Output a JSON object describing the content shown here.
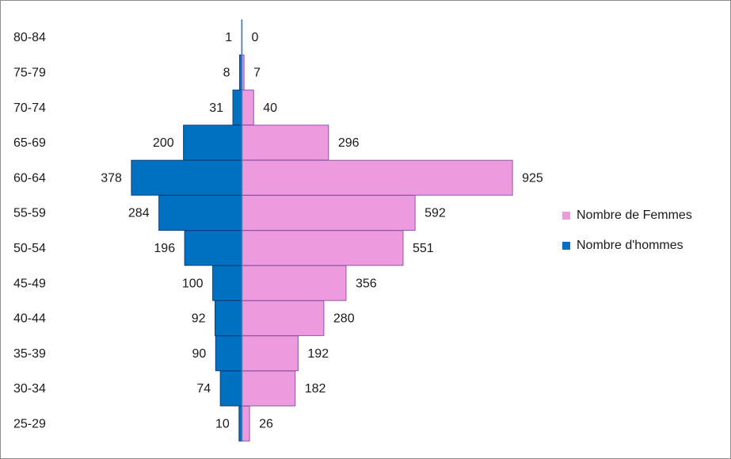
{
  "chart_data": {
    "type": "bar",
    "orientation": "horizontal-diverging",
    "categories": [
      "80-84",
      "75-79",
      "70-74",
      "65-69",
      "60-64",
      "55-59",
      "50-54",
      "45-49",
      "40-44",
      "35-39",
      "30-34",
      "25-29"
    ],
    "series": [
      {
        "name": "Nombre de Femmes",
        "side": "right",
        "color": "#ee9ade",
        "values": [
          0,
          7,
          40,
          296,
          925,
          592,
          551,
          356,
          280,
          192,
          182,
          26
        ]
      },
      {
        "name": "Nombre d'hommes",
        "side": "left",
        "color": "#0070c0",
        "values": [
          1,
          8,
          31,
          200,
          378,
          284,
          196,
          100,
          92,
          90,
          74,
          10
        ]
      }
    ],
    "legend_position": "right",
    "grid": false,
    "title": "",
    "xlabel": "",
    "ylabel": ""
  }
}
